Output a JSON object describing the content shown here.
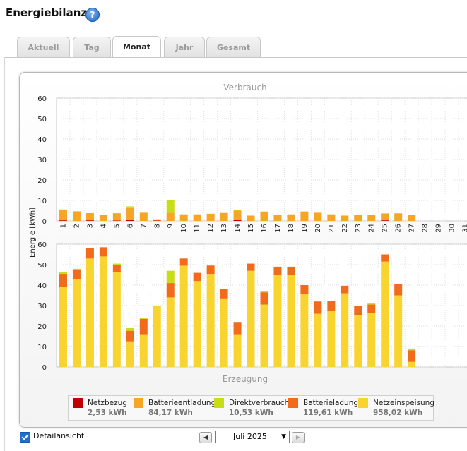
{
  "page": {
    "title": "Energiebilanz",
    "help_label": "?"
  },
  "tabs": [
    {
      "label": "Aktuell",
      "active": false
    },
    {
      "label": "Tag",
      "active": false
    },
    {
      "label": "Monat",
      "active": true
    },
    {
      "label": "Jahr",
      "active": false
    },
    {
      "label": "Gesamt",
      "active": false
    }
  ],
  "chart_data": [
    {
      "type": "bar",
      "stacked": true,
      "title": "Verbrauch",
      "ylabel": "Energie [kWh]",
      "ylim": [
        0,
        60
      ],
      "yticks": [
        0,
        10,
        20,
        30,
        40,
        50,
        60
      ],
      "grid": true,
      "categories": [
        "1",
        "2",
        "3",
        "4",
        "5",
        "6",
        "7",
        "8",
        "9",
        "10",
        "11",
        "12",
        "13",
        "14",
        "15",
        "16",
        "17",
        "18",
        "19",
        "20",
        "21",
        "22",
        "23",
        "24",
        "25",
        "26",
        "27",
        "28",
        "29",
        "30",
        "31"
      ],
      "series": [
        {
          "name": "Netzbezug",
          "color": "#c00000",
          "values": [
            0.3,
            0,
            0.3,
            0,
            0.2,
            0.4,
            0,
            0.2,
            0,
            0,
            0,
            0,
            0,
            0.4,
            0,
            0,
            0,
            0,
            0,
            0,
            0,
            0,
            0,
            0,
            0.3,
            0,
            0,
            0,
            0,
            0,
            0
          ]
        },
        {
          "name": "Batterieentladung",
          "color": "#f5a623",
          "values": [
            5.0,
            4.7,
            3.5,
            3.0,
            3.4,
            6.2,
            4.0,
            0.6,
            4.0,
            3.2,
            3.2,
            3.5,
            3.9,
            4.6,
            2.6,
            4.4,
            3.1,
            3.2,
            4.6,
            4.0,
            3.2,
            2.6,
            3.1,
            3.0,
            3.3,
            3.7,
            2.9,
            0,
            0,
            0,
            0
          ]
        },
        {
          "name": "Direktverbrauch",
          "color": "#c9dd16",
          "values": [
            0.3,
            0,
            0,
            0,
            0.2,
            0.5,
            0,
            0,
            6.0,
            0,
            0,
            0,
            0,
            0.3,
            0,
            0.2,
            0,
            0,
            0,
            0,
            0,
            0,
            0,
            0,
            0.1,
            0,
            0,
            0,
            0,
            0,
            0
          ]
        }
      ]
    },
    {
      "type": "bar",
      "stacked": true,
      "title": "Erzeugung",
      "ylabel": "Energie [kWh]",
      "ylim": [
        0,
        60
      ],
      "yticks": [
        0,
        10,
        20,
        30,
        40,
        50,
        60
      ],
      "grid": true,
      "categories": [
        "1",
        "2",
        "3",
        "4",
        "5",
        "6",
        "7",
        "8",
        "9",
        "10",
        "11",
        "12",
        "13",
        "14",
        "15",
        "16",
        "17",
        "18",
        "19",
        "20",
        "21",
        "22",
        "23",
        "24",
        "25",
        "26",
        "27",
        "28",
        "29",
        "30",
        "31"
      ],
      "series": [
        {
          "name": "Netzeinspeisung",
          "color": "#f9d42f",
          "values": [
            39,
            43,
            53,
            54,
            46.5,
            12.5,
            16,
            30,
            34,
            49.5,
            42,
            45.5,
            33.5,
            16,
            47,
            30.5,
            45,
            45,
            35.5,
            26,
            27.5,
            36,
            25.5,
            26.5,
            51.5,
            35,
            2.5,
            0,
            0,
            0,
            0
          ]
        },
        {
          "name": "Batterieladung",
          "color": "#f26a1b",
          "values": [
            6.5,
            4.5,
            5,
            4.5,
            3.3,
            5.2,
            7.5,
            0,
            7,
            3.5,
            4,
            4,
            4.5,
            6,
            3.5,
            6,
            4,
            4,
            4.5,
            6,
            4.8,
            3.7,
            4.5,
            4,
            3.5,
            5.5,
            5.7,
            0,
            0,
            0,
            0
          ]
        },
        {
          "name": "Direktverbrauch",
          "color": "#c9dd16",
          "values": [
            1,
            0.5,
            0,
            0,
            0.7,
            1.3,
            0.3,
            0,
            6,
            0,
            0,
            0.5,
            0,
            0,
            0,
            0.5,
            0,
            0,
            0,
            0,
            0,
            0,
            0,
            0.5,
            0,
            0,
            0.8,
            0,
            0,
            0,
            0
          ]
        }
      ]
    }
  ],
  "legend": [
    {
      "name": "Netzbezug",
      "value": "2,53 kWh",
      "color": "#c00000"
    },
    {
      "name": "Batterieentladung",
      "value": "84,17 kWh",
      "color": "#f5a623"
    },
    {
      "name": "Direktverbrauch",
      "value": "10,53 kWh",
      "color": "#c9dd16"
    },
    {
      "name": "Batterieladung",
      "value": "119,61 kWh",
      "color": "#f26a1b"
    },
    {
      "name": "Netzeinspeisung",
      "value": "958,02 kWh",
      "color": "#f9d42f"
    }
  ],
  "controls": {
    "detail_label": "Detailansicht",
    "detail_checked": true,
    "month_value": "Juli 2025",
    "prev_icon": "triangle-left-icon",
    "next_icon": "triangle-right-icon"
  }
}
